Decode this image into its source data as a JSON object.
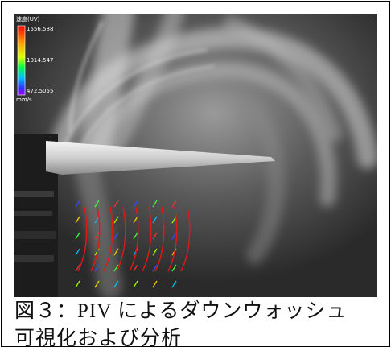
{
  "figure": {
    "colorbar": {
      "title": "速度(UV)",
      "max": "1556.588",
      "mid": "1014.547",
      "min": "472.5055",
      "unit": "mm/s"
    },
    "caption": [
      "図３：PIV によるダウンウォッシュ",
      "可視化および分析"
    ]
  }
}
